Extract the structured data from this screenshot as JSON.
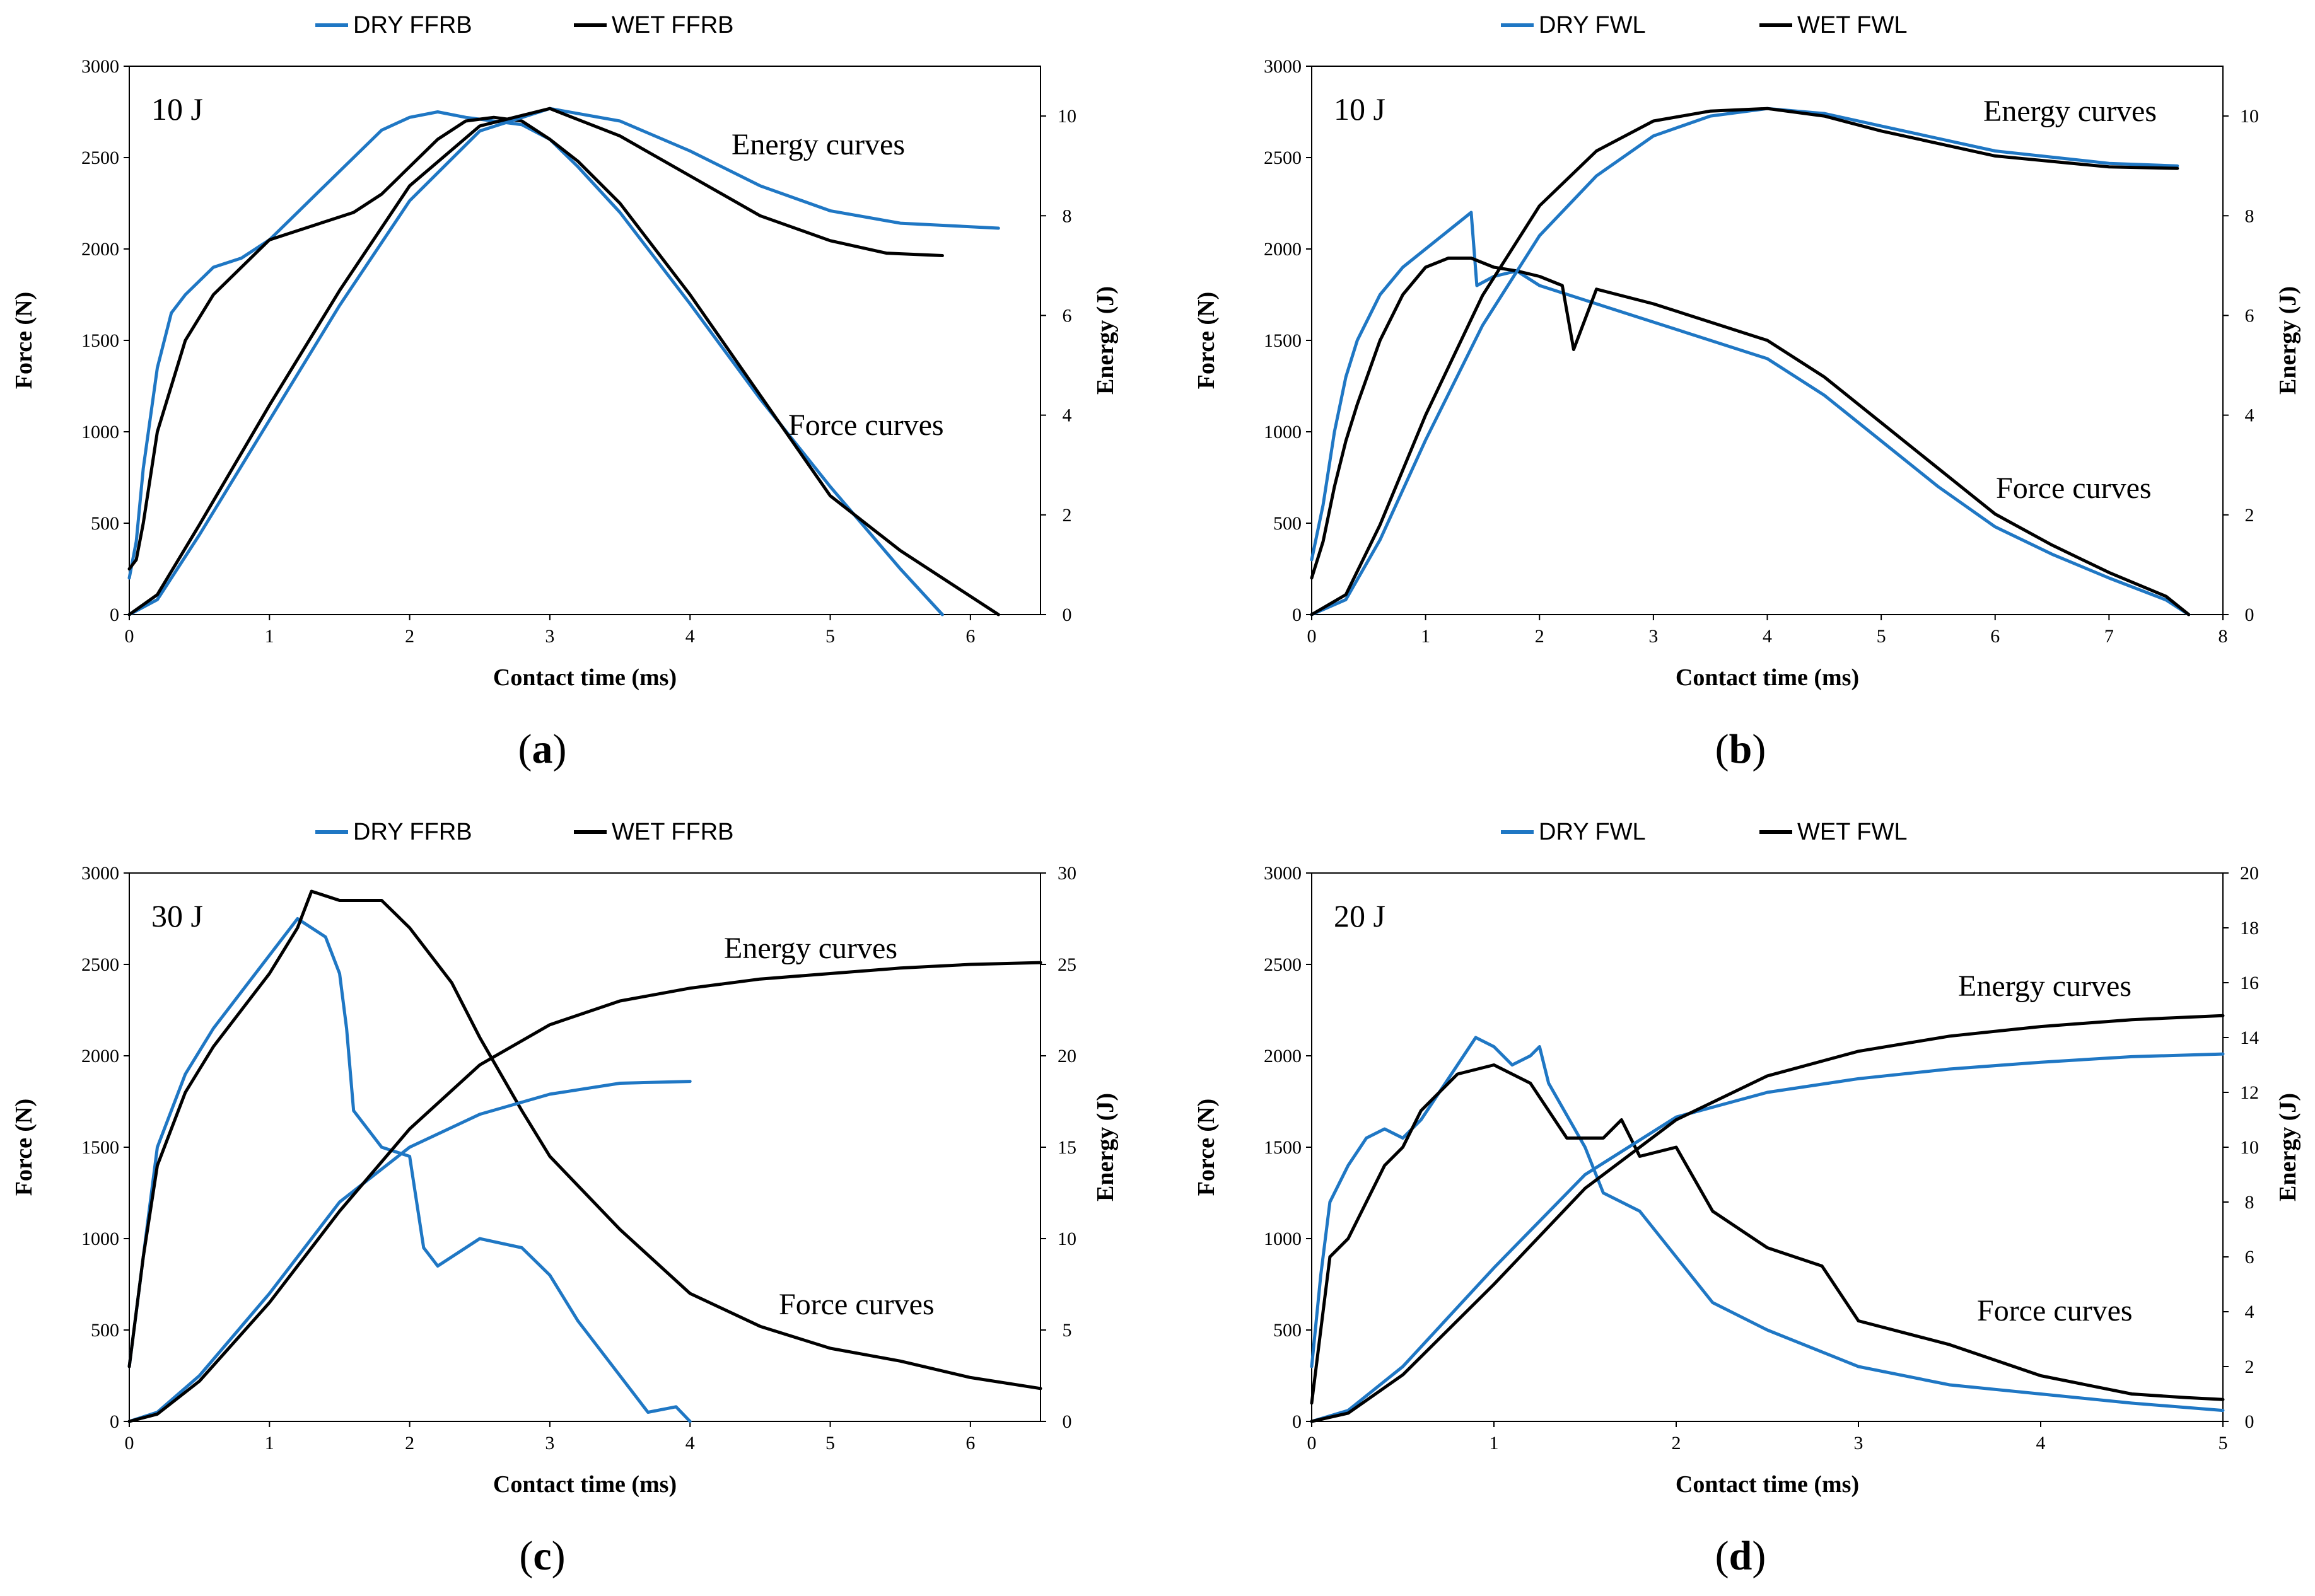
{
  "colors": {
    "dry": "#1f77c4",
    "wet": "#000000"
  },
  "chart_data": [
    {
      "type": "line",
      "panel_label": "a",
      "energy_label": "10 J",
      "xlabel": "Contact time (ms)",
      "ylabel": "Force (N)",
      "y2label": "Energy (J)",
      "xlim": [
        0,
        6.5
      ],
      "xticks": [
        0,
        1,
        2,
        3,
        4,
        5,
        6
      ],
      "ylim": [
        0,
        3000
      ],
      "yticks": [
        0,
        500,
        1000,
        1500,
        2000,
        2500,
        3000
      ],
      "y2lim": [
        0,
        11
      ],
      "y2ticks": [
        0,
        2,
        4,
        6,
        8,
        10
      ],
      "legend": [
        "DRY FFRB",
        "WET FFRB"
      ],
      "annotations": {
        "energy": "Energy curves",
        "force": "Force curves"
      },
      "series": [
        {
          "name": "DRY FFRB",
          "kind": "force",
          "axis": "y",
          "x": [
            0,
            0.05,
            0.1,
            0.2,
            0.3,
            0.4,
            0.6,
            0.8,
            1.0,
            1.2,
            1.4,
            1.6,
            1.8,
            2.0,
            2.2,
            2.4,
            2.6,
            2.8,
            3.0,
            3.2,
            3.5,
            4.0,
            4.5,
            5.0,
            5.5,
            5.8
          ],
          "y": [
            200,
            400,
            800,
            1350,
            1650,
            1750,
            1900,
            1950,
            2050,
            2200,
            2350,
            2500,
            2650,
            2720,
            2750,
            2720,
            2700,
            2680,
            2600,
            2450,
            2200,
            1700,
            1180,
            700,
            250,
            0
          ]
        },
        {
          "name": "WET FFRB",
          "kind": "force",
          "axis": "y",
          "x": [
            0,
            0.05,
            0.1,
            0.2,
            0.3,
            0.4,
            0.6,
            0.8,
            1.0,
            1.2,
            1.4,
            1.6,
            1.8,
            2.0,
            2.2,
            2.4,
            2.6,
            2.8,
            3.0,
            3.2,
            3.5,
            4.0,
            4.5,
            5.0,
            5.5,
            5.9,
            6.2
          ],
          "y": [
            250,
            300,
            500,
            1000,
            1250,
            1500,
            1750,
            1900,
            2050,
            2100,
            2150,
            2200,
            2300,
            2450,
            2600,
            2700,
            2720,
            2700,
            2600,
            2480,
            2250,
            1750,
            1200,
            650,
            350,
            150,
            0
          ]
        },
        {
          "name": "DRY FFRB",
          "kind": "energy",
          "axis": "y2",
          "x": [
            0,
            0.2,
            0.5,
            1.0,
            1.5,
            2.0,
            2.5,
            3.0,
            3.5,
            4.0,
            4.5,
            5.0,
            5.5,
            6.2
          ],
          "y": [
            0,
            0.3,
            1.6,
            3.9,
            6.2,
            8.3,
            9.7,
            10.15,
            9.9,
            9.3,
            8.6,
            8.1,
            7.85,
            7.75
          ]
        },
        {
          "name": "WET FFRB",
          "kind": "energy",
          "axis": "y2",
          "x": [
            0,
            0.2,
            0.5,
            1.0,
            1.5,
            2.0,
            2.5,
            3.0,
            3.5,
            4.0,
            4.5,
            5.0,
            5.4,
            5.8
          ],
          "y": [
            0,
            0.4,
            1.8,
            4.2,
            6.5,
            8.6,
            9.8,
            10.15,
            9.6,
            8.8,
            8.0,
            7.5,
            7.25,
            7.2
          ]
        }
      ]
    },
    {
      "type": "line",
      "panel_label": "b",
      "energy_label": "10 J",
      "xlabel": "Contact time (ms)",
      "ylabel": "Force (N)",
      "y2label": "Energy (J)",
      "xlim": [
        0,
        8
      ],
      "xticks": [
        0,
        1,
        2,
        3,
        4,
        5,
        6,
        7,
        8
      ],
      "ylim": [
        0,
        3000
      ],
      "yticks": [
        0,
        500,
        1000,
        1500,
        2000,
        2500,
        3000
      ],
      "y2lim": [
        0,
        11
      ],
      "y2ticks": [
        0,
        2,
        4,
        6,
        8,
        10
      ],
      "legend": [
        "DRY FWL",
        "WET FWL"
      ],
      "annotations": {
        "energy": "Energy curves",
        "force": "Force curves"
      },
      "series": [
        {
          "name": "DRY FWL",
          "kind": "force",
          "axis": "y",
          "x": [
            0,
            0.1,
            0.2,
            0.3,
            0.4,
            0.6,
            0.8,
            1.0,
            1.2,
            1.4,
            1.45,
            1.6,
            1.8,
            2.0,
            2.5,
            3.0,
            3.5,
            4.0,
            4.5,
            5.0,
            5.5,
            6.0,
            6.5,
            7.0,
            7.5,
            7.7
          ],
          "y": [
            300,
            600,
            1000,
            1300,
            1500,
            1750,
            1900,
            2000,
            2100,
            2200,
            1800,
            1850,
            1880,
            1800,
            1700,
            1600,
            1500,
            1400,
            1200,
            950,
            700,
            480,
            330,
            200,
            80,
            0
          ]
        },
        {
          "name": "WET FWL",
          "kind": "force",
          "axis": "y",
          "x": [
            0,
            0.1,
            0.2,
            0.3,
            0.4,
            0.6,
            0.8,
            1.0,
            1.2,
            1.4,
            1.6,
            1.8,
            2.0,
            2.2,
            2.3,
            2.5,
            3.0,
            3.5,
            4.0,
            4.5,
            5.0,
            5.5,
            6.0,
            6.5,
            7.0,
            7.5,
            7.7
          ],
          "y": [
            200,
            400,
            700,
            950,
            1150,
            1500,
            1750,
            1900,
            1950,
            1950,
            1900,
            1880,
            1850,
            1800,
            1450,
            1780,
            1700,
            1600,
            1500,
            1300,
            1050,
            800,
            550,
            380,
            230,
            100,
            0
          ]
        },
        {
          "name": "DRY FWL",
          "kind": "energy",
          "axis": "y2",
          "x": [
            0,
            0.3,
            0.6,
            1.0,
            1.5,
            2.0,
            2.5,
            3.0,
            3.5,
            4.0,
            4.5,
            5.0,
            6.0,
            7.0,
            7.6
          ],
          "y": [
            0,
            0.3,
            1.5,
            3.5,
            5.8,
            7.6,
            8.8,
            9.6,
            10.0,
            10.15,
            10.05,
            9.8,
            9.3,
            9.05,
            9.0
          ]
        },
        {
          "name": "WET FWL",
          "kind": "energy",
          "axis": "y2",
          "x": [
            0,
            0.3,
            0.6,
            1.0,
            1.5,
            2.0,
            2.5,
            3.0,
            3.5,
            4.0,
            4.5,
            5.0,
            6.0,
            7.0,
            7.6
          ],
          "y": [
            0,
            0.4,
            1.8,
            4.0,
            6.4,
            8.2,
            9.3,
            9.9,
            10.1,
            10.15,
            10.0,
            9.7,
            9.2,
            8.98,
            8.95
          ]
        }
      ]
    },
    {
      "type": "line",
      "panel_label": "c",
      "energy_label": "30 J",
      "xlabel": "Contact time (ms)",
      "ylabel": "Force (N)",
      "y2label": "Energy (J)",
      "xlim": [
        0,
        6.5
      ],
      "xticks": [
        0,
        1,
        2,
        3,
        4,
        5,
        6
      ],
      "ylim": [
        0,
        3000
      ],
      "yticks": [
        0,
        500,
        1000,
        1500,
        2000,
        2500,
        3000
      ],
      "y2lim": [
        0,
        30
      ],
      "y2ticks": [
        0,
        5,
        10,
        15,
        20,
        25,
        30
      ],
      "legend": [
        "DRY FFRB",
        "WET FFRB"
      ],
      "annotations": {
        "energy": "Energy curves",
        "force": "Force curves"
      },
      "series": [
        {
          "name": "DRY FFRB",
          "kind": "force",
          "axis": "y",
          "x": [
            0,
            0.1,
            0.15,
            0.2,
            0.4,
            0.6,
            0.8,
            1.0,
            1.2,
            1.4,
            1.5,
            1.55,
            1.6,
            1.8,
            2.0,
            2.05,
            2.1,
            2.2,
            2.5,
            2.8,
            3.0,
            3.2,
            3.5,
            3.7,
            3.9,
            4.0
          ],
          "y": [
            300,
            900,
            1200,
            1500,
            1900,
            2150,
            2350,
            2550,
            2750,
            2650,
            2450,
            2150,
            1700,
            1500,
            1450,
            1200,
            950,
            850,
            1000,
            950,
            800,
            550,
            250,
            50,
            80,
            0
          ]
        },
        {
          "name": "WET FFRB",
          "kind": "force",
          "axis": "y",
          "x": [
            0,
            0.1,
            0.2,
            0.4,
            0.6,
            0.8,
            1.0,
            1.2,
            1.3,
            1.5,
            1.8,
            2.0,
            2.3,
            2.5,
            2.8,
            3.0,
            3.5,
            4.0,
            4.5,
            5.0,
            5.5,
            6.0,
            6.5
          ],
          "y": [
            300,
            900,
            1400,
            1800,
            2050,
            2250,
            2450,
            2700,
            2900,
            2850,
            2850,
            2700,
            2400,
            2100,
            1700,
            1450,
            1050,
            700,
            520,
            400,
            330,
            240,
            180
          ]
        },
        {
          "name": "DRY FFRB",
          "kind": "energy",
          "axis": "y2",
          "x": [
            0,
            0.2,
            0.5,
            1.0,
            1.5,
            2.0,
            2.5,
            3.0,
            3.5,
            4.0
          ],
          "y": [
            0,
            0.5,
            2.5,
            7.0,
            12.0,
            15.0,
            16.8,
            17.9,
            18.5,
            18.6
          ]
        },
        {
          "name": "WET FFRB",
          "kind": "energy",
          "axis": "y2",
          "x": [
            0,
            0.2,
            0.5,
            1.0,
            1.5,
            2.0,
            2.5,
            3.0,
            3.5,
            4.0,
            4.5,
            5.0,
            5.5,
            6.0,
            6.5
          ],
          "y": [
            0,
            0.4,
            2.2,
            6.5,
            11.5,
            16.0,
            19.5,
            21.7,
            23.0,
            23.7,
            24.2,
            24.5,
            24.8,
            25.0,
            25.1
          ]
        }
      ]
    },
    {
      "type": "line",
      "panel_label": "d",
      "energy_label": "20 J",
      "xlabel": "Contact time (ms)",
      "ylabel": "Force (N)",
      "y2label": "Energy (J)",
      "xlim": [
        0,
        5
      ],
      "xticks": [
        0,
        1,
        2,
        3,
        4,
        5
      ],
      "ylim": [
        0,
        3000
      ],
      "yticks": [
        0,
        500,
        1000,
        1500,
        2000,
        2500,
        3000
      ],
      "y2lim": [
        0,
        20
      ],
      "y2ticks": [
        0,
        2,
        4,
        6,
        8,
        10,
        12,
        14,
        16,
        18,
        20
      ],
      "legend": [
        "DRY FWL",
        "WET FWL"
      ],
      "annotations": {
        "energy": "Energy curves",
        "force": "Force curves"
      },
      "series": [
        {
          "name": "DRY FWL",
          "kind": "force",
          "axis": "y",
          "x": [
            0,
            0.05,
            0.1,
            0.2,
            0.3,
            0.4,
            0.5,
            0.6,
            0.8,
            0.9,
            1.0,
            1.1,
            1.2,
            1.25,
            1.3,
            1.5,
            1.6,
            1.8,
            2.0,
            2.2,
            2.5,
            3.0,
            3.5,
            4.0,
            4.5,
            5.0
          ],
          "y": [
            300,
            800,
            1200,
            1400,
            1550,
            1600,
            1550,
            1650,
            1950,
            2100,
            2050,
            1950,
            2000,
            2050,
            1850,
            1500,
            1250,
            1150,
            900,
            650,
            500,
            300,
            200,
            150,
            100,
            60
          ]
        },
        {
          "name": "WET FWL",
          "kind": "force",
          "axis": "y",
          "x": [
            0,
            0.05,
            0.1,
            0.2,
            0.3,
            0.4,
            0.5,
            0.6,
            0.8,
            1.0,
            1.2,
            1.4,
            1.6,
            1.7,
            1.8,
            2.0,
            2.2,
            2.5,
            2.8,
            3.0,
            3.5,
            4.0,
            4.5,
            4.8,
            5.0
          ],
          "y": [
            100,
            500,
            900,
            1000,
            1200,
            1400,
            1500,
            1700,
            1900,
            1950,
            1850,
            1550,
            1550,
            1650,
            1450,
            1500,
            1150,
            950,
            850,
            550,
            420,
            250,
            150,
            130,
            120
          ]
        },
        {
          "name": "DRY FWL",
          "kind": "energy",
          "axis": "y2",
          "x": [
            0,
            0.2,
            0.5,
            1.0,
            1.5,
            2.0,
            2.5,
            3.0,
            3.5,
            4.0,
            4.5,
            5.0
          ],
          "y": [
            0,
            0.4,
            2.0,
            5.6,
            9.0,
            11.1,
            12.0,
            12.5,
            12.85,
            13.1,
            13.3,
            13.4
          ]
        },
        {
          "name": "WET FWL",
          "kind": "energy",
          "axis": "y2",
          "x": [
            0,
            0.2,
            0.5,
            1.0,
            1.5,
            2.0,
            2.5,
            3.0,
            3.5,
            4.0,
            4.5,
            5.0
          ],
          "y": [
            0,
            0.3,
            1.7,
            5.0,
            8.5,
            11.0,
            12.6,
            13.5,
            14.05,
            14.4,
            14.65,
            14.8
          ]
        }
      ]
    }
  ]
}
